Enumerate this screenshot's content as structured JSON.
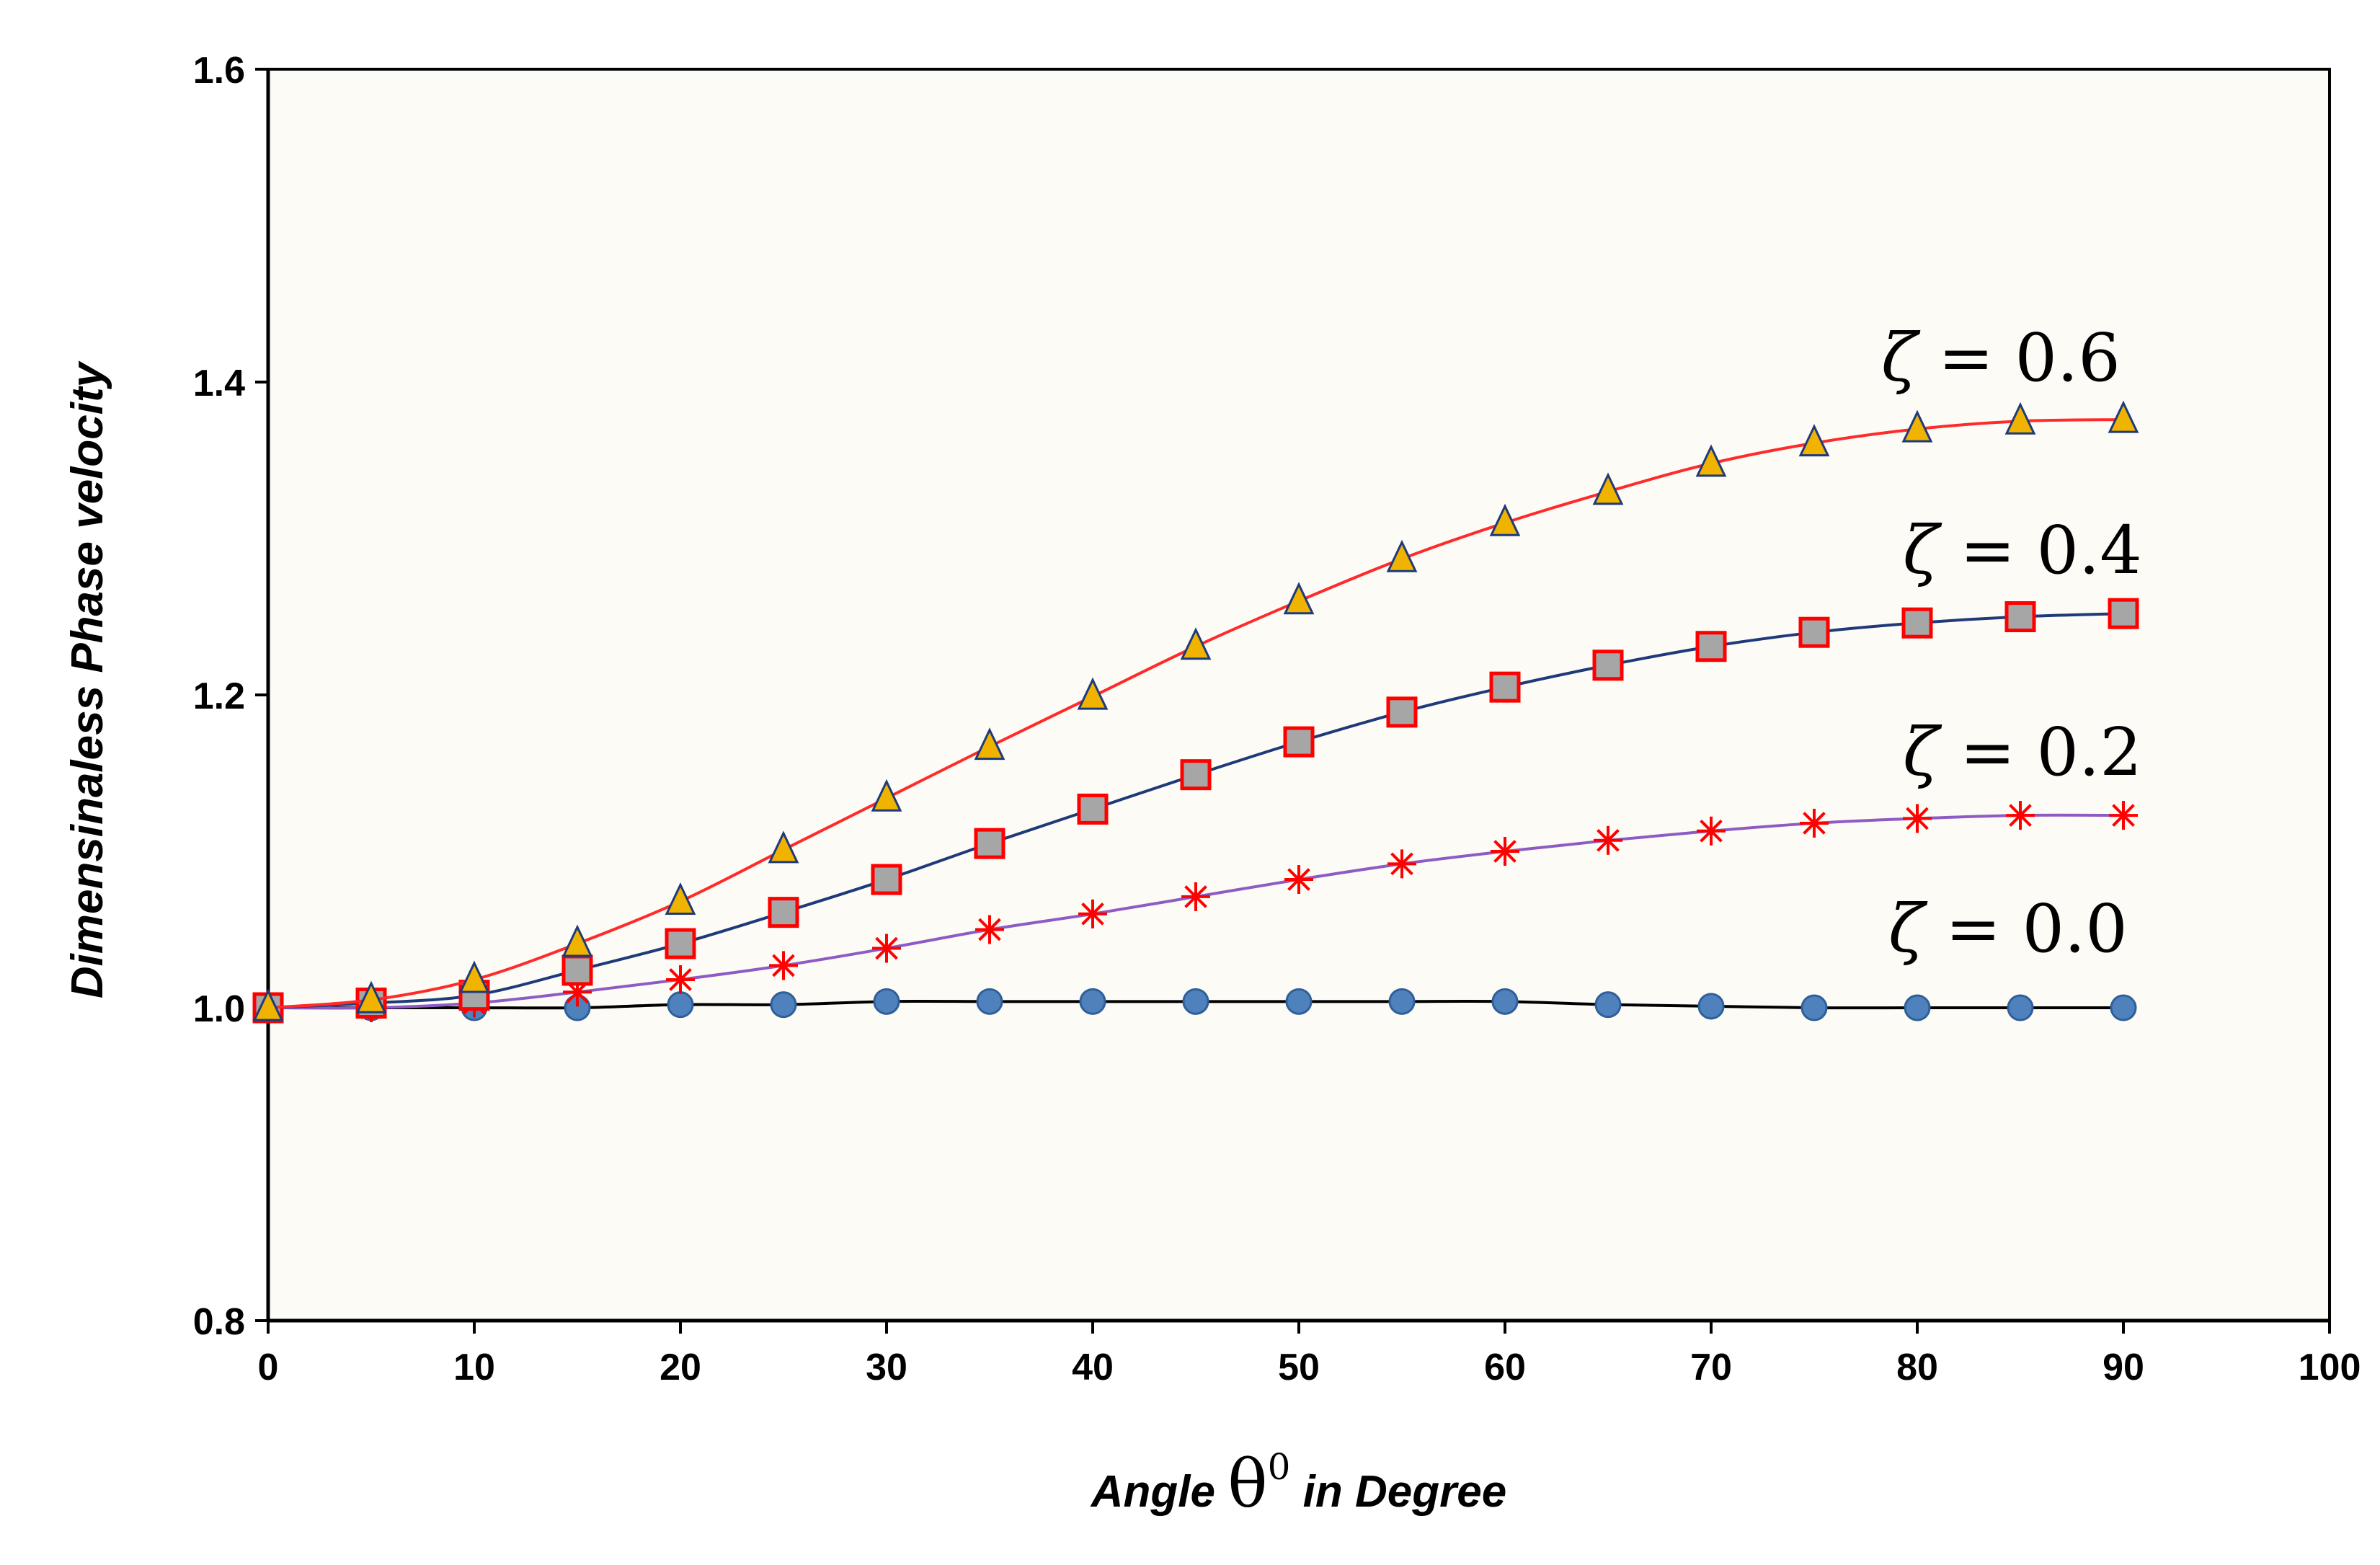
{
  "chart_data": {
    "type": "line",
    "title": "",
    "xlabel": {
      "prefix": "Angle ",
      "symbol": "θ",
      "superscript": "0",
      "suffix": " in Degree"
    },
    "ylabel": "Dimensinaless Phase velocity",
    "xlim": [
      0,
      100
    ],
    "ylim": [
      0.8,
      1.6
    ],
    "xticks": [
      0,
      10,
      20,
      30,
      40,
      50,
      60,
      70,
      80,
      90,
      100
    ],
    "yticks": [
      0.8,
      1.0,
      1.2,
      1.4,
      1.6
    ],
    "ytick_labels": [
      "0.8",
      "1.0",
      "1.2",
      "1.4",
      "1.6"
    ],
    "x": [
      0,
      5,
      10,
      15,
      20,
      25,
      30,
      35,
      40,
      45,
      50,
      55,
      60,
      65,
      70,
      75,
      80,
      85,
      90
    ],
    "series": [
      {
        "name": "ζ = 0.0",
        "label_symbol": "ζ",
        "label_rest": " = 0.0",
        "marker": "circle",
        "line_color": "#000000",
        "marker_fill": "#4f81bd",
        "marker_stroke": "#2f5f9a",
        "values": [
          1.0,
          1.0,
          1.0,
          1.0,
          1.002,
          1.002,
          1.004,
          1.004,
          1.004,
          1.004,
          1.004,
          1.004,
          1.004,
          1.002,
          1.001,
          1.0,
          1.0,
          1.0,
          1.0
        ]
      },
      {
        "name": "ζ = 0.2",
        "label_symbol": "ζ",
        "label_rest": " = 0.2",
        "marker": "asterisk",
        "line_color": "#8e5bc4",
        "marker_fill": "none",
        "marker_stroke": "#ff0000",
        "values": [
          1.0,
          1.0,
          1.003,
          1.01,
          1.018,
          1.027,
          1.038,
          1.05,
          1.06,
          1.071,
          1.082,
          1.092,
          1.1,
          1.107,
          1.113,
          1.118,
          1.121,
          1.123,
          1.123
        ]
      },
      {
        "name": "ζ = 0.4",
        "label_symbol": "ζ",
        "label_rest": " = 0.4",
        "marker": "square",
        "line_color": "#1f3a7a",
        "marker_fill": "#a6a6a6",
        "marker_stroke": "#ff0000",
        "values": [
          1.0,
          1.003,
          1.008,
          1.024,
          1.041,
          1.061,
          1.082,
          1.105,
          1.127,
          1.149,
          1.17,
          1.189,
          1.205,
          1.219,
          1.231,
          1.24,
          1.246,
          1.25,
          1.252
        ]
      },
      {
        "name": "ζ = 0.6",
        "label_symbol": "ζ",
        "label_rest": " = 0.6",
        "marker": "triangle",
        "line_color": "#ff2a2a",
        "marker_fill": "#f0b400",
        "marker_stroke": "#1f3a7a",
        "values": [
          1.0,
          1.005,
          1.018,
          1.041,
          1.068,
          1.101,
          1.134,
          1.167,
          1.199,
          1.231,
          1.26,
          1.287,
          1.31,
          1.33,
          1.348,
          1.361,
          1.37,
          1.375,
          1.376
        ]
      }
    ]
  }
}
